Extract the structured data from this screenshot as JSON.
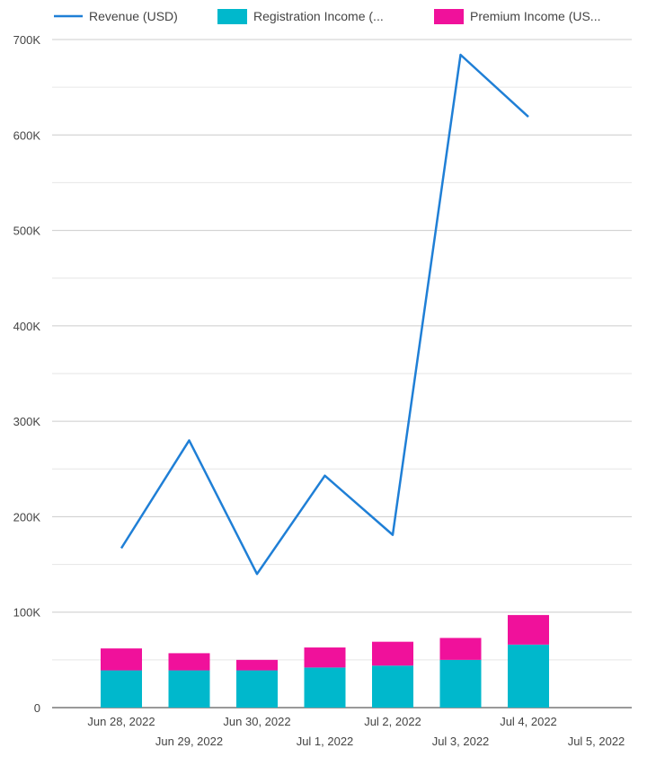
{
  "chart_data": {
    "type": "bar",
    "title": "",
    "xlabel": "",
    "ylabel": "",
    "ylim": [
      0,
      700000
    ],
    "y_ticks": [
      0,
      100000,
      200000,
      300000,
      400000,
      500000,
      600000,
      700000
    ],
    "y_tick_labels": [
      "0",
      "100K",
      "200K",
      "300K",
      "400K",
      "500K",
      "600K",
      "700K"
    ],
    "grid": true,
    "legend_position": "top",
    "categories": [
      "Jun 28, 2022",
      "Jun 29, 2022",
      "Jun 30, 2022",
      "Jul 1, 2022",
      "Jul 2, 2022",
      "Jul 3, 2022",
      "Jul 4, 2022",
      "Jul 5, 2022"
    ],
    "series": [
      {
        "name": "Registration Income (...",
        "kind": "bar",
        "color": "#00b8cc",
        "values": [
          39000,
          39000,
          39000,
          42000,
          44000,
          50000,
          66000,
          null
        ]
      },
      {
        "name": "Premium Income (US...",
        "kind": "bar",
        "color": "#f0119b",
        "values": [
          23000,
          18000,
          11000,
          21000,
          25000,
          23000,
          31000,
          null
        ]
      },
      {
        "name": "Revenue (USD)",
        "kind": "line",
        "color": "#1f7fd6",
        "values": [
          167000,
          280000,
          140000,
          243000,
          181000,
          684000,
          619000,
          null
        ]
      }
    ]
  }
}
